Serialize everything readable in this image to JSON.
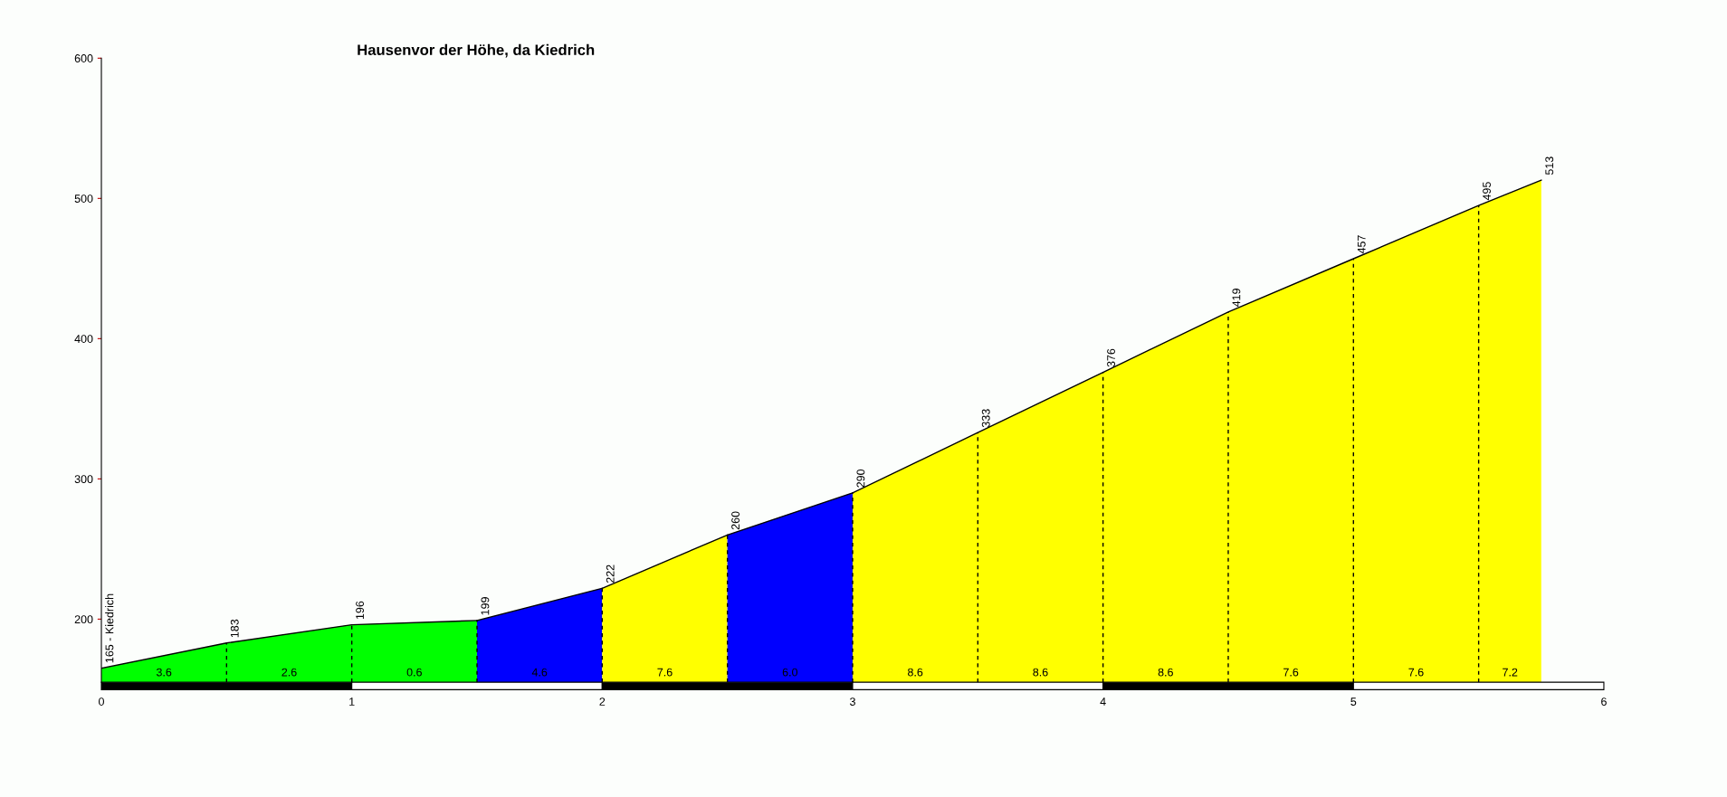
{
  "chart_data": {
    "type": "area",
    "title": "Hausenvor der Höhe, da Kiedrich",
    "series": [
      {
        "color": "#00ff00",
        "x": [
          0,
          0.5,
          1,
          1.5
        ],
        "values": [
          165,
          183,
          196,
          199
        ],
        "value_labels": [
          "165 - Kiedrich",
          "183",
          "196",
          "199"
        ]
      },
      {
        "color": "#0000ff",
        "x": [
          1.5,
          2
        ],
        "values": [
          199,
          222
        ],
        "value_labels": [
          null,
          "222"
        ]
      },
      {
        "color": "#ffff00",
        "x": [
          2,
          2.5
        ],
        "values": [
          222,
          260
        ],
        "value_labels": [
          null,
          "260"
        ]
      },
      {
        "color": "#0000ff",
        "x": [
          2.5,
          3
        ],
        "values": [
          260,
          290
        ],
        "value_labels": [
          null,
          "290"
        ]
      },
      {
        "color": "#ffff00",
        "x": [
          3,
          3.5,
          4,
          4.5,
          5,
          5.5,
          5.75
        ],
        "values": [
          290,
          333,
          376,
          419,
          457,
          495,
          513
        ],
        "value_labels": [
          null,
          "333",
          "376",
          "419",
          "457",
          "495",
          "513"
        ]
      }
    ],
    "annotations": [
      "3.6",
      "2.6",
      "0.6",
      "4.6",
      "7.6",
      "6.0",
      "8.6",
      "8.6",
      "8.6",
      "7.6",
      "7.6",
      "7.2"
    ],
    "xlim": [
      0,
      6
    ],
    "xticks": [
      0,
      1,
      2,
      3,
      4,
      5,
      6
    ],
    "ylim": [
      155,
      600
    ],
    "yticks": [
      200,
      300,
      400,
      500,
      600
    ],
    "grid": false
  }
}
